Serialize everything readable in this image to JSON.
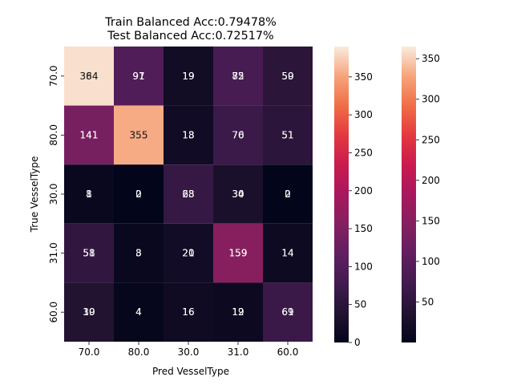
{
  "chart_data": {
    "type": "heatmap",
    "title_lines": [
      "Train Balanced Acc:0.79478%",
      "Test Balanced Acc:0.72517%"
    ],
    "xlabel": "Pred VesselType",
    "ylabel": "True VesselType",
    "x_categories": [
      "70.0",
      "80.0",
      "30.0",
      "31.0",
      "60.0"
    ],
    "y_categories": [
      "70.0",
      "80.0",
      "30.0",
      "31.0",
      "60.0"
    ],
    "note": "Two overlapping annotated heatmaps (train and test) drawn on the same axes; annotations overlap, each with its own colorbar.",
    "layers": [
      {
        "name": "train",
        "values": [
          [
            384,
            97,
            19,
            85,
            50
          ],
          [
            141,
            355,
            18,
            70,
            51
          ],
          [
            8,
            0,
            63,
            30,
            0
          ],
          [
            58,
            8,
            20,
            159,
            14
          ],
          [
            39,
            4,
            16,
            12,
            69
          ]
        ],
        "colorbar": {
          "min": 0,
          "max": 390,
          "ticks": [
            0,
            50,
            100,
            150,
            200,
            250,
            300,
            350
          ]
        }
      },
      {
        "name": "test",
        "values": [
          [
            364,
            91,
            19,
            72,
            59
          ],
          [
            141,
            355,
            13,
            76,
            51
          ],
          [
            1,
            2,
            28,
            34,
            2
          ],
          [
            51,
            3,
            21,
            159,
            14
          ],
          [
            10,
            4,
            16,
            19,
            61
          ]
        ],
        "colorbar": {
          "min": 0,
          "max": 365,
          "ticks": [
            50,
            100,
            150,
            200,
            250,
            300,
            350
          ]
        }
      }
    ],
    "colormap": "rocket",
    "grid": false
  }
}
